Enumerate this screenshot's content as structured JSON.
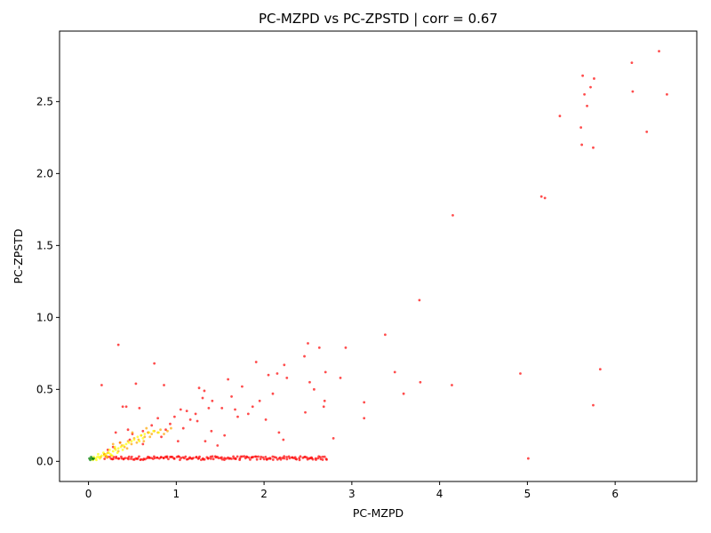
{
  "chart_data": {
    "type": "scatter",
    "title": "PC-MZPD vs PC-ZPSTD | corr = 0.67",
    "xlabel": "PC-MZPD",
    "ylabel": "PC-ZPSTD",
    "xlim": [
      -0.33,
      6.93
    ],
    "ylim": [
      -0.14,
      2.99
    ],
    "xticks": [
      0,
      1,
      2,
      3,
      4,
      5,
      6
    ],
    "xtick_labels": [
      "0",
      "1",
      "2",
      "3",
      "4",
      "5",
      "6"
    ],
    "yticks": [
      0.0,
      0.5,
      1.0,
      1.5,
      2.0,
      2.5
    ],
    "ytick_labels": [
      "0.0",
      "0.5",
      "1.0",
      "1.5",
      "2.0",
      "2.5"
    ],
    "grid": false,
    "legend": "none",
    "colors": {
      "red": "#ff0000",
      "orange": "#ffa500",
      "yellow": "#ffff00",
      "green": "#008000",
      "axis": "#000000"
    },
    "series": [
      {
        "color": "#ff0000",
        "points": [
          [
            6.5,
            2.85
          ],
          [
            6.19,
            2.77
          ],
          [
            5.63,
            2.68
          ],
          [
            5.76,
            2.66
          ],
          [
            5.72,
            2.6
          ],
          [
            6.2,
            2.57
          ],
          [
            5.65,
            2.55
          ],
          [
            6.59,
            2.55
          ],
          [
            5.68,
            2.47
          ],
          [
            5.37,
            2.4
          ],
          [
            5.61,
            2.32
          ],
          [
            6.36,
            2.29
          ],
          [
            5.62,
            2.2
          ],
          [
            5.75,
            2.18
          ],
          [
            5.16,
            1.84
          ],
          [
            5.2,
            1.83
          ],
          [
            4.15,
            1.71
          ],
          [
            3.77,
            1.12
          ],
          [
            3.38,
            0.88
          ],
          [
            2.5,
            0.82
          ],
          [
            0.34,
            0.81
          ],
          [
            2.63,
            0.79
          ],
          [
            2.93,
            0.79
          ],
          [
            2.46,
            0.73
          ],
          [
            0.75,
            0.68
          ],
          [
            1.91,
            0.69
          ],
          [
            2.23,
            0.67
          ],
          [
            5.83,
            0.64
          ],
          [
            2.7,
            0.62
          ],
          [
            3.49,
            0.62
          ],
          [
            2.15,
            0.61
          ],
          [
            2.87,
            0.58
          ],
          [
            2.26,
            0.58
          ],
          [
            4.92,
            0.61
          ],
          [
            1.59,
            0.57
          ],
          [
            2.05,
            0.6
          ],
          [
            2.52,
            0.55
          ],
          [
            3.78,
            0.55
          ],
          [
            0.54,
            0.54
          ],
          [
            0.86,
            0.53
          ],
          [
            4.14,
            0.53
          ],
          [
            0.15,
            0.53
          ],
          [
            1.75,
            0.52
          ],
          [
            2.57,
            0.5
          ],
          [
            2.1,
            0.47
          ],
          [
            1.26,
            0.51
          ],
          [
            1.32,
            0.49
          ],
          [
            2.69,
            0.42
          ],
          [
            3.14,
            0.41
          ],
          [
            3.59,
            0.47
          ],
          [
            0.39,
            0.38
          ],
          [
            0.43,
            0.38
          ],
          [
            0.58,
            0.37
          ],
          [
            1.52,
            0.37
          ],
          [
            1.67,
            0.36
          ],
          [
            1.87,
            0.38
          ],
          [
            2.47,
            0.34
          ],
          [
            2.68,
            0.38
          ],
          [
            3.14,
            0.3
          ],
          [
            5.75,
            0.39
          ],
          [
            2.79,
            0.16
          ],
          [
            1.4,
            0.21
          ],
          [
            1.7,
            0.31
          ],
          [
            2.17,
            0.2
          ],
          [
            2.22,
            0.15
          ],
          [
            1.16,
            0.29
          ],
          [
            0.93,
            0.26
          ],
          [
            0.62,
            0.21
          ],
          [
            1.08,
            0.23
          ],
          [
            1.22,
            0.33
          ],
          [
            1.41,
            0.42
          ],
          [
            1.63,
            0.45
          ],
          [
            1.95,
            0.42
          ],
          [
            1.82,
            0.33
          ],
          [
            2.02,
            0.29
          ],
          [
            1.12,
            0.35
          ],
          [
            0.98,
            0.31
          ],
          [
            0.88,
            0.22
          ],
          [
            0.72,
            0.25
          ],
          [
            0.68,
            0.2
          ],
          [
            0.5,
            0.19
          ],
          [
            0.47,
            0.15
          ],
          [
            0.36,
            0.13
          ],
          [
            0.28,
            0.1
          ],
          [
            0.22,
            0.08
          ],
          [
            0.18,
            0.05
          ],
          [
            1.33,
            0.14
          ],
          [
            1.47,
            0.11
          ],
          [
            1.55,
            0.18
          ],
          [
            0.83,
            0.17
          ],
          [
            1.02,
            0.14
          ],
          [
            1.24,
            0.28
          ],
          [
            1.37,
            0.37
          ],
          [
            0.31,
            0.2
          ],
          [
            0.45,
            0.22
          ],
          [
            0.62,
            0.12
          ],
          [
            0.79,
            0.3
          ],
          [
            1.05,
            0.36
          ],
          [
            1.3,
            0.44
          ],
          [
            5.01,
            0.02
          ]
        ],
        "band": {
          "x_range": [
            0.18,
            2.72
          ],
          "y_range": [
            0.01,
            0.035
          ],
          "count": 180
        }
      },
      {
        "color": "#ffa500",
        "points": [
          [
            0.22,
            0.06
          ],
          [
            0.3,
            0.09
          ],
          [
            0.38,
            0.11
          ],
          [
            0.45,
            0.14
          ],
          [
            0.52,
            0.16
          ],
          [
            0.6,
            0.18
          ],
          [
            0.68,
            0.2
          ],
          [
            0.75,
            0.21
          ],
          [
            0.82,
            0.22
          ],
          [
            0.9,
            0.21
          ],
          [
            0.26,
            0.04
          ],
          [
            0.34,
            0.07
          ],
          [
            0.41,
            0.1
          ],
          [
            0.49,
            0.12
          ],
          [
            0.57,
            0.15
          ],
          [
            0.64,
            0.17
          ],
          [
            0.72,
            0.19
          ],
          [
            0.79,
            0.2
          ],
          [
            0.18,
            0.05
          ],
          [
            0.55,
            0.13
          ],
          [
            0.63,
            0.14
          ],
          [
            0.7,
            0.17
          ],
          [
            0.36,
            0.13
          ],
          [
            0.44,
            0.09
          ],
          [
            0.14,
            0.03
          ],
          [
            0.28,
            0.12
          ],
          [
            0.5,
            0.2
          ],
          [
            0.66,
            0.23
          ],
          [
            0.86,
            0.19
          ],
          [
            0.94,
            0.23
          ]
        ]
      },
      {
        "color": "#ffff00",
        "points": [
          [
            0.05,
            0.01
          ],
          [
            0.08,
            0.02
          ],
          [
            0.1,
            0.03
          ],
          [
            0.12,
            0.03
          ],
          [
            0.15,
            0.04
          ],
          [
            0.18,
            0.04
          ],
          [
            0.2,
            0.05
          ],
          [
            0.23,
            0.06
          ],
          [
            0.25,
            0.05
          ],
          [
            0.28,
            0.07
          ],
          [
            0.31,
            0.08
          ],
          [
            0.34,
            0.09
          ],
          [
            0.37,
            0.1
          ],
          [
            0.4,
            0.11
          ],
          [
            0.43,
            0.12
          ],
          [
            0.46,
            0.13
          ],
          [
            0.49,
            0.14
          ],
          [
            0.52,
            0.15
          ],
          [
            0.56,
            0.17
          ],
          [
            0.6,
            0.18
          ],
          [
            0.64,
            0.19
          ],
          [
            0.69,
            0.2
          ],
          [
            0.74,
            0.21
          ],
          [
            0.8,
            0.2
          ],
          [
            0.13,
            0.02
          ],
          [
            0.17,
            0.06
          ],
          [
            0.21,
            0.03
          ],
          [
            0.27,
            0.04
          ],
          [
            0.33,
            0.06
          ],
          [
            0.39,
            0.08
          ],
          [
            0.06,
            0.03
          ],
          [
            0.09,
            0.01
          ],
          [
            0.11,
            0.05
          ],
          [
            0.24,
            0.08
          ],
          [
            0.3,
            0.1
          ],
          [
            0.58,
            0.14
          ],
          [
            0.62,
            0.16
          ]
        ]
      },
      {
        "color": "#008000",
        "points": [
          [
            0.02,
            0.01
          ],
          [
            0.04,
            0.02
          ],
          [
            0.05,
            0.015
          ],
          [
            0.03,
            0.03
          ],
          [
            0.06,
            0.02
          ],
          [
            0.01,
            0.02
          ]
        ]
      }
    ]
  }
}
